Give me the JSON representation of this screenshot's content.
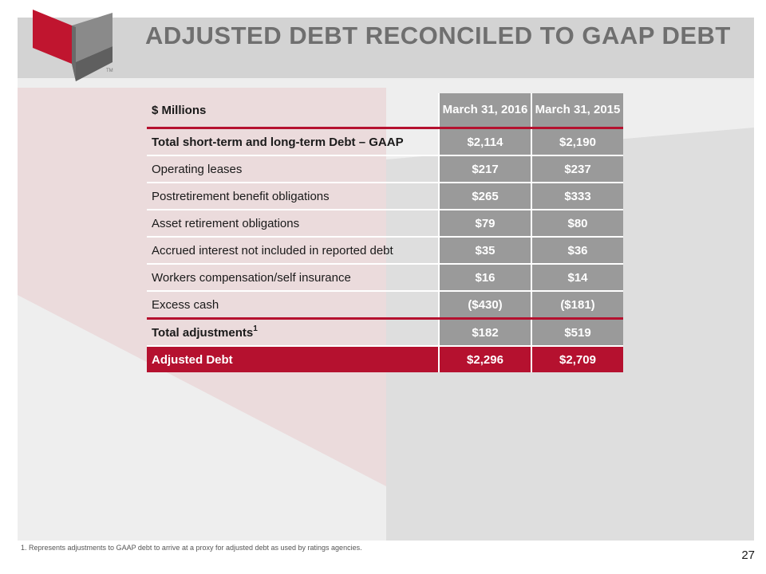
{
  "header": {
    "title": "ADJUSTED DEBT RECONCILED TO GAAP DEBT",
    "tm": "TM"
  },
  "table": {
    "units_label": "$ Millions",
    "col1_header": "March 31, 2016",
    "col2_header": "March 31, 2015",
    "rows": [
      {
        "label": "Total short-term and long-term Debt – GAAP",
        "v1": "$2,114",
        "v2": "$2,190"
      },
      {
        "label": "Operating leases",
        "v1": "$217",
        "v2": "$237"
      },
      {
        "label": "Postretirement benefit obligations",
        "v1": "$265",
        "v2": "$333"
      },
      {
        "label": "Asset retirement obligations",
        "v1": "$79",
        "v2": "$80"
      },
      {
        "label": "Accrued interest not included in reported debt",
        "v1": "$35",
        "v2": "$36"
      },
      {
        "label": "Workers compensation/self insurance",
        "v1": "$16",
        "v2": "$14"
      },
      {
        "label": "Excess cash",
        "v1": "($430)",
        "v2": "($181)"
      },
      {
        "label": "Total adjustments",
        "sup": "1",
        "v1": "$182",
        "v2": "$519"
      },
      {
        "label": "Adjusted Debt",
        "v1": "$2,296",
        "v2": "$2,709"
      }
    ]
  },
  "footnote": "1. Represents adjustments to GAAP debt to arrive at a proxy for adjusted debt as used by ratings agencies.",
  "page_number": "27",
  "colors": {
    "accent_red": "#b5112f",
    "header_gray": "#9a9a9a",
    "title_gray": "#6f6f6f"
  }
}
